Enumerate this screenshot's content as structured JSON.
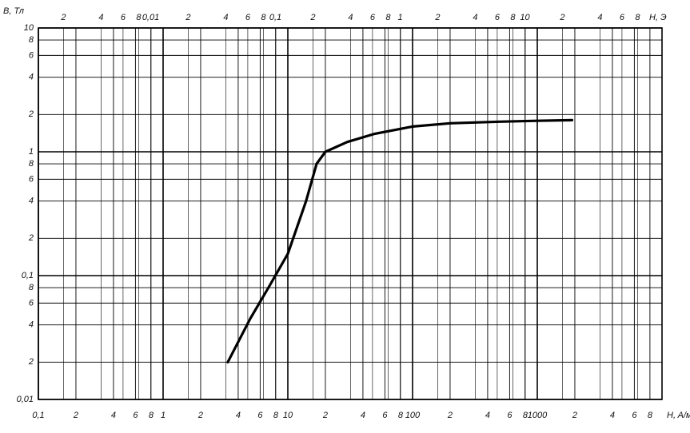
{
  "chart_data": {
    "type": "line",
    "y_label": "B, Тл",
    "x_label": "H, A/м",
    "x2_label": "H, Э",
    "x_scale": "log",
    "y_scale": "log",
    "grid": true,
    "color": "#000000",
    "x": [
      3.3,
      5,
      7,
      10,
      14,
      17,
      20,
      30,
      50,
      100,
      200,
      500,
      1000,
      1900
    ],
    "values": [
      0.02,
      0.045,
      0.08,
      0.15,
      0.4,
      0.8,
      1.0,
      1.2,
      1.4,
      1.6,
      1.7,
      1.75,
      1.78,
      1.8
    ],
    "xlim": [
      0.1,
      10000
    ],
    "ylim": [
      0.01,
      10
    ],
    "x2lim": [
      0.0012566,
      125.66
    ],
    "xticks": [
      {
        "value": 0.1,
        "label": "0,1"
      },
      {
        "value": 0.2,
        "label": "2"
      },
      {
        "value": 0.4,
        "label": "4"
      },
      {
        "value": 0.6,
        "label": "6"
      },
      {
        "value": 0.8,
        "label": "8"
      },
      1,
      {
        "value": 2,
        "label": "2"
      },
      {
        "value": 4,
        "label": "4"
      },
      {
        "value": 6,
        "label": "6"
      },
      {
        "value": 8,
        "label": "8"
      },
      10,
      {
        "value": 20,
        "label": "2"
      },
      {
        "value": 40,
        "label": "4"
      },
      {
        "value": 60,
        "label": "6"
      },
      {
        "value": 80,
        "label": "8"
      },
      100,
      {
        "value": 200,
        "label": "2"
      },
      {
        "value": 400,
        "label": "4"
      },
      {
        "value": 600,
        "label": "6"
      },
      {
        "value": 800,
        "label": "8"
      },
      1000,
      {
        "value": 2000,
        "label": "2"
      },
      {
        "value": 4000,
        "label": "4"
      },
      {
        "value": 6000,
        "label": "6"
      },
      {
        "value": 8000,
        "label": "8"
      }
    ],
    "x2ticks": [
      {
        "value": 0.002,
        "label": "2"
      },
      {
        "value": 0.004,
        "label": "4"
      },
      {
        "value": 0.006,
        "label": "6"
      },
      {
        "value": 0.008,
        "label": "8"
      },
      {
        "value": 0.01,
        "label": "0,01"
      },
      {
        "value": 0.02,
        "label": "2"
      },
      {
        "value": 0.04,
        "label": "4"
      },
      {
        "value": 0.06,
        "label": "6"
      },
      {
        "value": 0.08,
        "label": "8"
      },
      {
        "value": 0.1,
        "label": "0,1"
      },
      {
        "value": 0.2,
        "label": "2"
      },
      {
        "value": 0.4,
        "label": "4"
      },
      {
        "value": 0.6,
        "label": "6"
      },
      {
        "value": 0.8,
        "label": "8"
      },
      1,
      {
        "value": 2,
        "label": "2"
      },
      {
        "value": 4,
        "label": "4"
      },
      {
        "value": 6,
        "label": "6"
      },
      {
        "value": 8,
        "label": "8"
      },
      10,
      {
        "value": 20,
        "label": "2"
      },
      {
        "value": 40,
        "label": "4"
      },
      {
        "value": 60,
        "label": "6"
      },
      {
        "value": 80,
        "label": "8"
      }
    ],
    "yticks": [
      {
        "value": 0.01,
        "label": "0,01"
      },
      {
        "value": 0.02,
        "label": "2"
      },
      {
        "value": 0.04,
        "label": "4"
      },
      {
        "value": 0.06,
        "label": "6"
      },
      {
        "value": 0.08,
        "label": "8"
      },
      {
        "value": 0.1,
        "label": "0,1"
      },
      {
        "value": 0.2,
        "label": "2"
      },
      {
        "value": 0.4,
        "label": "4"
      },
      {
        "value": 0.6,
        "label": "6"
      },
      {
        "value": 0.8,
        "label": "8"
      },
      1,
      {
        "value": 2,
        "label": "2"
      },
      {
        "value": 4,
        "label": "4"
      },
      {
        "value": 6,
        "label": "6"
      },
      {
        "value": 8,
        "label": "8"
      },
      10
    ]
  }
}
